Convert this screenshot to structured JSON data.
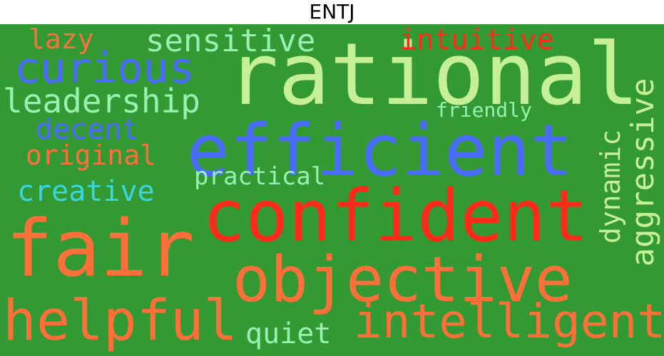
{
  "title": "ENTJ",
  "colors": {
    "background": "#339933",
    "orange": "#ff6f3a",
    "red": "#ff2a1a",
    "blue": "#4a6bff",
    "light_green": "#c6f098",
    "pale_green": "#9af0b0",
    "cyan": "#3ad6e0"
  },
  "words": [
    {
      "id": "rational",
      "text": "rational",
      "color": "#c6f098"
    },
    {
      "id": "efficient",
      "text": "efficient",
      "color": "#4a6bff"
    },
    {
      "id": "confident",
      "text": "confident",
      "color": "#ff2a1a"
    },
    {
      "id": "fair",
      "text": "fair",
      "color": "#ff6f3a"
    },
    {
      "id": "objective",
      "text": "objective",
      "color": "#ff6f3a"
    },
    {
      "id": "helpful",
      "text": "helpful",
      "color": "#ff6f3a"
    },
    {
      "id": "intelligent",
      "text": "intelligent",
      "color": "#ff6f3a"
    },
    {
      "id": "curious",
      "text": "curious",
      "color": "#4a6bff"
    },
    {
      "id": "leadership",
      "text": "leadership",
      "color": "#9af0b0"
    },
    {
      "id": "sensitive",
      "text": "sensitive",
      "color": "#9af0b0"
    },
    {
      "id": "intuitive",
      "text": "intuitive",
      "color": "#ff2a1a"
    },
    {
      "id": "lazy",
      "text": "lazy",
      "color": "#ff6f3a"
    },
    {
      "id": "decent",
      "text": "decent",
      "color": "#4a6bff"
    },
    {
      "id": "original",
      "text": "original",
      "color": "#ff6f3a"
    },
    {
      "id": "creative",
      "text": "creative",
      "color": "#3ad6e0"
    },
    {
      "id": "practical",
      "text": "practical",
      "color": "#9af0b0"
    },
    {
      "id": "friendly",
      "text": "friendly",
      "color": "#9af0b0"
    },
    {
      "id": "aggressive",
      "text": "aggressive",
      "color": "#c6f098"
    },
    {
      "id": "dynamic",
      "text": "dynamic",
      "color": "#c6f098"
    },
    {
      "id": "quiet",
      "text": "quiet",
      "color": "#9af0b0"
    }
  ]
}
